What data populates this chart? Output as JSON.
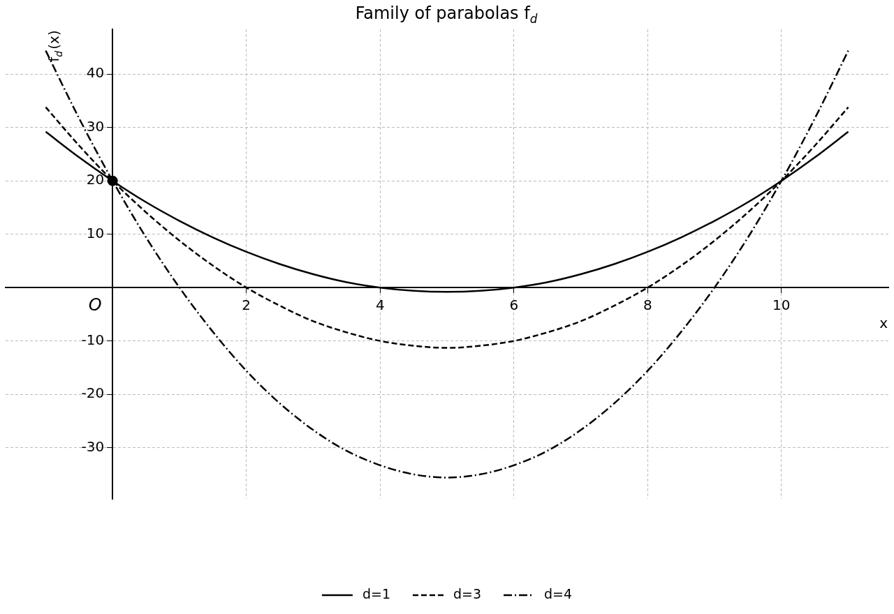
{
  "chart_data": {
    "type": "line",
    "title": "Family of parabolas f$_{d}$",
    "xlabel": "x",
    "ylabel": "f$_{d}$(x)",
    "x": [
      -1,
      -0.5,
      0,
      0.5,
      1,
      1.5,
      2,
      2.5,
      3,
      3.5,
      4,
      4.5,
      5,
      5.5,
      6,
      6.5,
      7,
      7.5,
      8,
      8.5,
      9,
      9.5,
      10,
      10.5,
      11
    ],
    "series": [
      {
        "name": "d=1",
        "color": "#000000",
        "line_style": "solid",
        "values": [
          29.2,
          24.4,
          20,
          16,
          12.5,
          9.4,
          6.7,
          4.4,
          2.5,
          1,
          0,
          -0.6,
          -0.8,
          -0.6,
          0,
          1,
          2.5,
          4.4,
          6.7,
          9.4,
          12.5,
          16,
          20,
          24.4,
          29.2
        ]
      },
      {
        "name": "d=3",
        "color": "#000000",
        "line_style": "dashed",
        "values": [
          33.8,
          26.6,
          20,
          14.1,
          8.8,
          4.1,
          0,
          -3.4,
          -6.3,
          -8.4,
          -10,
          -10.9,
          -11.3,
          -10.9,
          -10,
          -8.4,
          -6.3,
          -3.4,
          0,
          4.1,
          8.8,
          14.1,
          20,
          26.6,
          33.8
        ]
      },
      {
        "name": "d=4",
        "color": "#000000",
        "line_style": "dashdot",
        "values": [
          44.4,
          31.7,
          20,
          9.4,
          0,
          -8.3,
          -15.6,
          -21.7,
          -26.7,
          -30.6,
          -33.3,
          -35,
          -35.6,
          -35,
          -33.3,
          -30.6,
          -26.7,
          -21.7,
          -15.6,
          -8.3,
          0,
          9.4,
          20,
          31.7,
          44.4
        ]
      },
      {
        "type": "scatter",
        "marker": "circle",
        "color": "#000000",
        "x": [
          0
        ],
        "values": [
          20
        ]
      }
    ],
    "marker": "none",
    "xlim": [
      -1.6,
      11.6
    ],
    "xticks": [
      2,
      4,
      6,
      8,
      10
    ],
    "ylim": [
      -39.6,
      48.4
    ],
    "yticks": [
      -30,
      -20,
      -10,
      10,
      20,
      30,
      40
    ],
    "grid": true,
    "legend": "bottom",
    "annotations": [
      "O"
    ]
  }
}
